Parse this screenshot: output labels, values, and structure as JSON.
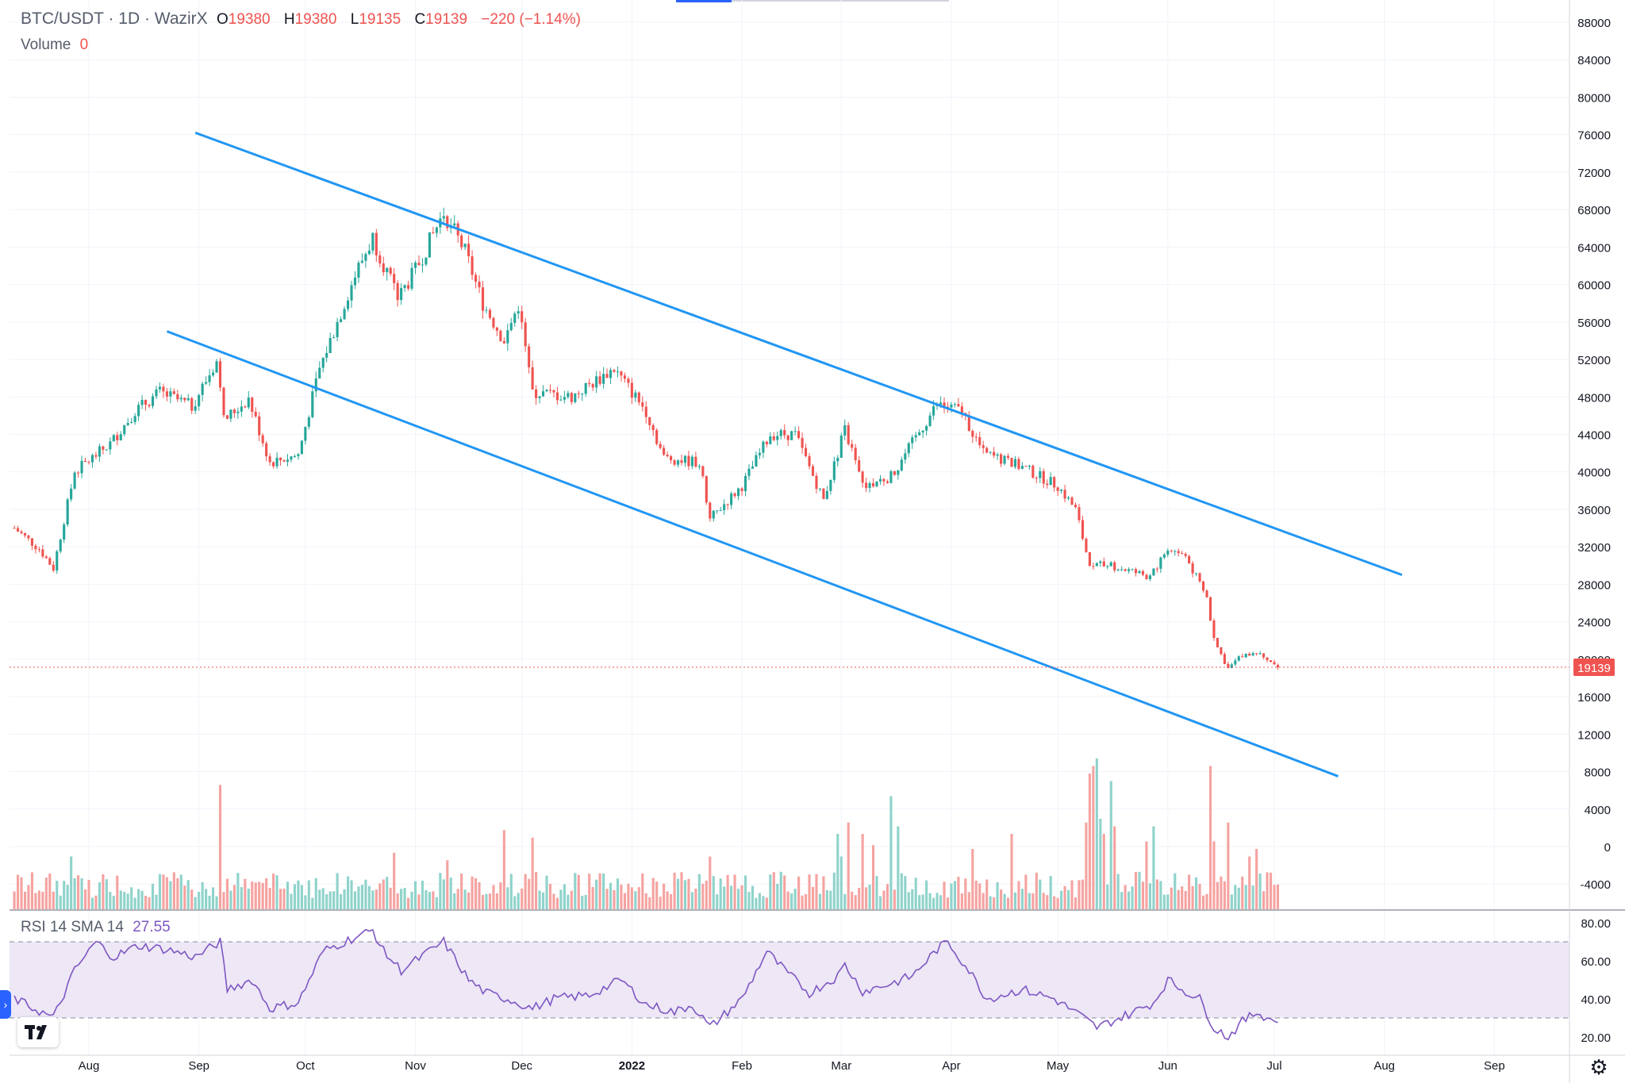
{
  "header": {
    "symbol": "BTC/USDT · 1D · WazirX",
    "ohlc": [
      {
        "label": "O",
        "value": "19380"
      },
      {
        "label": "H",
        "value": "19380"
      },
      {
        "label": "L",
        "value": "19135"
      },
      {
        "label": "C",
        "value": "19139"
      }
    ],
    "change": "−220 (−1.14%)",
    "volume_label": "Volume",
    "volume_value": "0"
  },
  "rsi_legend": {
    "label": "RSI 14 SMA 14",
    "value": "27.55"
  },
  "colors": {
    "up": "#26a69a",
    "down": "#ef5350",
    "up_vol": "#8fd3cb",
    "down_vol": "#f5a3a1",
    "trendline": "#2196f3",
    "rsi": "#7e57c2",
    "rsi_band": "#ede7f6",
    "grid": "#f0f3fa",
    "axis_text": "#131722"
  },
  "icons": [
    "tradingview-logo-icon",
    "settings-gear-icon",
    "chevron-right-icon"
  ],
  "chart_data": {
    "type": "candlestick",
    "title": "BTC/USDT · 1D · WazirX",
    "price_axis": {
      "min": -6000,
      "max": 90000,
      "ticks": [
        "88000",
        "84000",
        "80000",
        "76000",
        "72000",
        "68000",
        "64000",
        "60000",
        "56000",
        "52000",
        "48000",
        "44000",
        "40000",
        "36000",
        "32000",
        "28000",
        "24000",
        "20000",
        "16000",
        "12000",
        "8000",
        "4000",
        "0",
        "-4000"
      ]
    },
    "last_price": "19139",
    "x_axis": {
      "labels": [
        "Aug",
        "Sep",
        "Oct",
        "Nov",
        "Dec",
        "2022",
        "Feb",
        "Mar",
        "Apr",
        "May",
        "Jun",
        "Jul",
        "Aug",
        "Sep"
      ],
      "label_dates": [
        "2021-08-01",
        "2021-09-01",
        "2021-10-01",
        "2021-11-01",
        "2021-12-01",
        "2022-01-01",
        "2022-02-01",
        "2022-03-01",
        "2022-04-01",
        "2022-05-01",
        "2022-06-01",
        "2022-07-01",
        "2022-08-01",
        "2022-09-01"
      ],
      "start_date": "2021-07-11",
      "end_date": "2022-09-30"
    },
    "price_anchors": [
      [
        "2021-07-11",
        34000
      ],
      [
        "2021-07-18",
        31800
      ],
      [
        "2021-07-22",
        29700
      ],
      [
        "2021-07-28",
        40000
      ],
      [
        "2021-08-07",
        43000
      ],
      [
        "2021-08-14",
        46500
      ],
      [
        "2021-08-21",
        48500
      ],
      [
        "2021-08-30",
        47000
      ],
      [
        "2021-09-06",
        51800
      ],
      [
        "2021-09-08",
        45500
      ],
      [
        "2021-09-15",
        47800
      ],
      [
        "2021-09-21",
        41000
      ],
      [
        "2021-09-29",
        41800
      ],
      [
        "2021-10-05",
        51000
      ],
      [
        "2021-10-15",
        61000
      ],
      [
        "2021-10-20",
        65000
      ],
      [
        "2021-10-27",
        58500
      ],
      [
        "2021-11-01",
        61500
      ],
      [
        "2021-11-09",
        67700
      ],
      [
        "2021-11-15",
        63500
      ],
      [
        "2021-11-20",
        58000
      ],
      [
        "2021-11-26",
        54000
      ],
      [
        "2021-11-30",
        57800
      ],
      [
        "2021-12-04",
        48500
      ],
      [
        "2021-12-15",
        48000
      ],
      [
        "2021-12-27",
        51000
      ],
      [
        "2022-01-05",
        46500
      ],
      [
        "2022-01-10",
        41500
      ],
      [
        "2022-01-20",
        41000
      ],
      [
        "2022-01-23",
        35000
      ],
      [
        "2022-02-01",
        38500
      ],
      [
        "2022-02-09",
        44000
      ],
      [
        "2022-02-16",
        44000
      ],
      [
        "2022-02-24",
        37000
      ],
      [
        "2022-03-02",
        44500
      ],
      [
        "2022-03-07",
        38500
      ],
      [
        "2022-03-15",
        39500
      ],
      [
        "2022-03-28",
        47200
      ],
      [
        "2022-04-04",
        46500
      ],
      [
        "2022-04-10",
        42000
      ],
      [
        "2022-04-21",
        40500
      ],
      [
        "2022-05-01",
        38500
      ],
      [
        "2022-05-06",
        36000
      ],
      [
        "2022-05-10",
        30000
      ],
      [
        "2022-05-16",
        30000
      ],
      [
        "2022-05-27",
        28800
      ],
      [
        "2022-06-01",
        31800
      ],
      [
        "2022-06-06",
        31000
      ],
      [
        "2022-06-12",
        26500
      ],
      [
        "2022-06-14",
        22000
      ],
      [
        "2022-06-18",
        19000
      ],
      [
        "2022-06-22",
        20500
      ],
      [
        "2022-06-27",
        20800
      ],
      [
        "2022-07-02",
        19139
      ]
    ],
    "volume_spikes": [
      [
        "2021-07-27",
        14
      ],
      [
        "2021-09-07",
        33
      ],
      [
        "2021-10-26",
        15
      ],
      [
        "2021-11-10",
        13
      ],
      [
        "2021-11-26",
        21
      ],
      [
        "2021-12-04",
        19
      ],
      [
        "2022-01-23",
        14
      ],
      [
        "2022-02-28",
        20
      ],
      [
        "2022-03-01",
        14
      ],
      [
        "2022-03-03",
        23
      ],
      [
        "2022-03-07",
        20
      ],
      [
        "2022-03-10",
        17
      ],
      [
        "2022-03-15",
        30
      ],
      [
        "2022-03-17",
        22
      ],
      [
        "2022-04-07",
        16
      ],
      [
        "2022-04-18",
        20
      ],
      [
        "2022-05-09",
        23
      ],
      [
        "2022-05-10",
        36
      ],
      [
        "2022-05-11",
        38
      ],
      [
        "2022-05-12",
        40
      ],
      [
        "2022-05-13",
        24
      ],
      [
        "2022-05-14",
        20
      ],
      [
        "2022-05-16",
        34
      ],
      [
        "2022-05-17",
        22
      ],
      [
        "2022-05-26",
        18
      ],
      [
        "2022-05-28",
        22
      ],
      [
        "2022-06-13",
        38
      ],
      [
        "2022-06-14",
        18
      ],
      [
        "2022-06-18",
        23
      ],
      [
        "2022-06-24",
        14
      ],
      [
        "2022-06-26",
        16
      ]
    ],
    "trendlines": [
      {
        "from": [
          "2021-08-31",
          76200
        ],
        "to": [
          "2022-08-06",
          29000
        ]
      },
      {
        "from": [
          "2021-08-23",
          55000
        ],
        "to": [
          "2022-07-19",
          7500
        ]
      }
    ],
    "rsi": {
      "axis_ticks": [
        "80.00",
        "60.00",
        "40.00",
        "20.00"
      ],
      "min": 14,
      "max": 82,
      "upper_band": 70,
      "lower_band": 30,
      "anchors": [
        [
          "2021-07-11",
          40
        ],
        [
          "2021-07-22",
          30
        ],
        [
          "2021-07-28",
          55
        ],
        [
          "2021-08-03",
          70
        ],
        [
          "2021-08-08",
          62
        ],
        [
          "2021-08-15",
          68
        ],
        [
          "2021-08-23",
          66
        ],
        [
          "2021-08-31",
          62
        ],
        [
          "2021-09-07",
          70
        ],
        [
          "2021-09-09",
          45
        ],
        [
          "2021-09-16",
          50
        ],
        [
          "2021-09-21",
          35
        ],
        [
          "2021-09-29",
          38
        ],
        [
          "2021-10-06",
          65
        ],
        [
          "2021-10-12",
          70
        ],
        [
          "2021-10-20",
          76
        ],
        [
          "2021-10-23",
          65
        ],
        [
          "2021-10-28",
          55
        ],
        [
          "2021-11-01",
          60
        ],
        [
          "2021-11-09",
          70
        ],
        [
          "2021-11-16",
          50
        ],
        [
          "2021-11-21",
          43
        ],
        [
          "2021-11-27",
          40
        ],
        [
          "2021-12-04",
          35
        ],
        [
          "2021-12-10",
          40
        ],
        [
          "2021-12-20",
          42
        ],
        [
          "2021-12-29",
          50
        ],
        [
          "2022-01-05",
          37
        ],
        [
          "2022-01-13",
          33
        ],
        [
          "2022-01-18",
          37
        ],
        [
          "2022-01-23",
          25
        ],
        [
          "2022-02-01",
          40
        ],
        [
          "2022-02-08",
          65
        ],
        [
          "2022-02-13",
          55
        ],
        [
          "2022-02-20",
          43
        ],
        [
          "2022-02-28",
          52
        ],
        [
          "2022-03-02",
          58
        ],
        [
          "2022-03-07",
          44
        ],
        [
          "2022-03-15",
          48
        ],
        [
          "2022-03-21",
          52
        ],
        [
          "2022-03-28",
          66
        ],
        [
          "2022-03-31",
          70
        ],
        [
          "2022-04-06",
          55
        ],
        [
          "2022-04-11",
          40
        ],
        [
          "2022-04-21",
          45
        ],
        [
          "2022-04-30",
          40
        ],
        [
          "2022-05-06",
          33
        ],
        [
          "2022-05-12",
          25
        ],
        [
          "2022-05-21",
          32
        ],
        [
          "2022-05-28",
          38
        ],
        [
          "2022-06-01",
          50
        ],
        [
          "2022-06-05",
          45
        ],
        [
          "2022-06-10",
          40
        ],
        [
          "2022-06-14",
          25
        ],
        [
          "2022-06-18",
          20
        ],
        [
          "2022-06-22",
          28
        ],
        [
          "2022-06-26",
          33
        ],
        [
          "2022-07-02",
          27.55
        ]
      ]
    }
  }
}
